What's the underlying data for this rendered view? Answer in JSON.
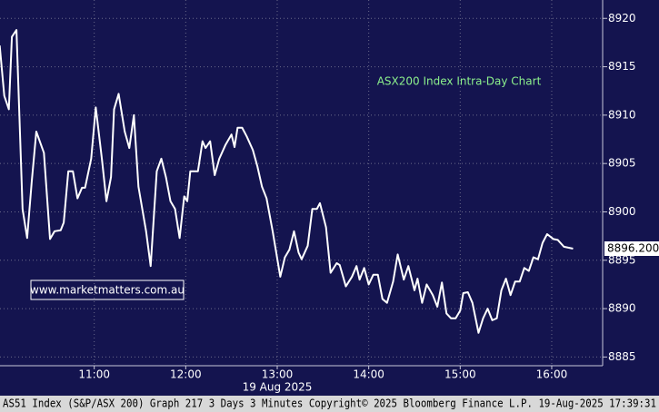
{
  "chart_data": {
    "type": "line",
    "title": "ASX200 Index Intra-Day Chart",
    "watermark": "www.marketmatters.com.au",
    "date_label": "19 Aug 2025",
    "footer": "AS51 Index (S&P/ASX 200) Graph 217 3 Days 3 Minutes  Copyright© 2025 Bloomberg Finance L.P.  19-Aug-2025 17:39:31",
    "last_value": {
      "value": 8896.2,
      "label": "8896.200"
    },
    "x": [
      598,
      601,
      604,
      606,
      609,
      613,
      616,
      619,
      622,
      627,
      631,
      634,
      638,
      640,
      643,
      646,
      649,
      652,
      654,
      658,
      661,
      665,
      668,
      671,
      673,
      676,
      680,
      683,
      686,
      689,
      694,
      697,
      701,
      704,
      707,
      710,
      713,
      716,
      719,
      721,
      723,
      728,
      731,
      733,
      736,
      739,
      742,
      746,
      750,
      752,
      754,
      757,
      760,
      764,
      767,
      770,
      773,
      777,
      782,
      785,
      788,
      791,
      794,
      796,
      800,
      803,
      806,
      808,
      812,
      815,
      819,
      821,
      825,
      829,
      832,
      834,
      837,
      840,
      843,
      846,
      849,
      852,
      856,
      859,
      863,
      866,
      870,
      872,
      875,
      878,
      882,
      885,
      888,
      891,
      894,
      897,
      900,
      902,
      905,
      908,
      912,
      915,
      918,
      921,
      924,
      927,
      930,
      933,
      936,
      939,
      942,
      945,
      948,
      951,
      954,
      957,
      961,
      964,
      968,
      974
    ],
    "series": [
      {
        "name": "ASX200",
        "color": "#ffffff",
        "values": [
          8917.2,
          8912.0,
          8910.6,
          8918.1,
          8918.8,
          8900.3,
          8897.3,
          8903.1,
          8908.3,
          8906.1,
          8897.2,
          8898.0,
          8898.1,
          8898.9,
          8904.2,
          8904.2,
          8901.4,
          8902.5,
          8902.5,
          8905.5,
          8910.8,
          8905.5,
          8901.1,
          8903.6,
          8910.6,
          8912.2,
          8908.3,
          8906.6,
          8910.0,
          8902.6,
          8898.0,
          8894.4,
          8904.2,
          8905.5,
          8903.6,
          8901.1,
          8900.3,
          8897.3,
          8901.6,
          8901.1,
          8904.2,
          8904.2,
          8907.3,
          8906.6,
          8907.3,
          8903.8,
          8905.5,
          8906.9,
          8908.0,
          8906.7,
          8908.7,
          8908.7,
          8907.8,
          8906.4,
          8904.7,
          8902.6,
          8901.4,
          8898.0,
          8893.3,
          8895.3,
          8896.1,
          8898.0,
          8895.8,
          8895.1,
          8896.5,
          8900.3,
          8900.3,
          8900.9,
          8898.4,
          8893.7,
          8894.7,
          8894.5,
          8892.3,
          8893.3,
          8894.4,
          8893.0,
          8894.2,
          8892.5,
          8893.5,
          8893.5,
          8891.0,
          8890.6,
          8892.8,
          8895.6,
          8893.0,
          8894.4,
          8891.9,
          8893.1,
          8890.6,
          8892.5,
          8891.4,
          8890.2,
          8892.7,
          8889.5,
          8889.0,
          8889.0,
          8889.8,
          8891.6,
          8891.7,
          8890.6,
          8887.5,
          8889.0,
          8890.0,
          8888.8,
          8889.0,
          8891.9,
          8893.1,
          8891.4,
          8892.8,
          8892.8,
          8894.2,
          8893.9,
          8895.3,
          8895.1,
          8896.8,
          8897.7,
          8897.2,
          8897.1,
          8896.4,
          8896.2
        ]
      }
    ],
    "xlim": [
      598.2,
      993.4
    ],
    "xticks": [
      {
        "value": 660,
        "label": "11:00"
      },
      {
        "value": 720,
        "label": "12:00"
      },
      {
        "value": 780,
        "label": "13:00"
      },
      {
        "value": 840,
        "label": "14:00"
      },
      {
        "value": 900,
        "label": "15:00"
      },
      {
        "value": 960,
        "label": "16:00"
      }
    ],
    "ylim": [
      8884.1,
      8921.9
    ],
    "yticks": [
      8885,
      8890,
      8895,
      8900,
      8905,
      8910,
      8915,
      8920
    ],
    "grid": true
  }
}
